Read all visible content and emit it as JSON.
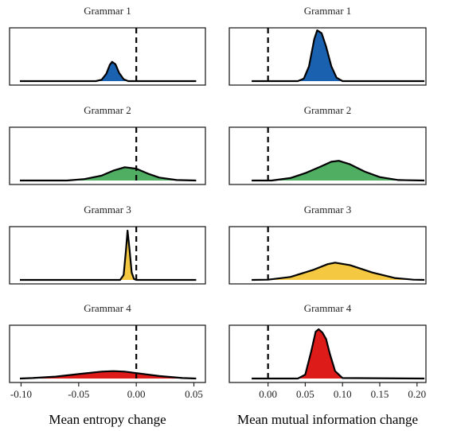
{
  "chart_data": [
    {
      "type": "density",
      "xlabel": "Mean entropy change",
      "xlim": [
        -0.11,
        0.06
      ],
      "ylim": [
        -0.08,
        1.08
      ],
      "xticks": [
        {
          "value": -0.1,
          "label": "-0.10"
        },
        {
          "value": -0.05,
          "label": "-0.05"
        },
        {
          "value": 0,
          "label": "0.00"
        },
        {
          "value": 0.05,
          "label": "0.05"
        }
      ],
      "reference_line": 0,
      "panels": [
        {
          "title": "Grammar 1",
          "color": "#1a62b0",
          "x": [
            -0.101,
            -0.035,
            -0.03,
            -0.026,
            -0.023,
            -0.021,
            -0.018,
            -0.015,
            -0.011,
            -0.007,
            0.052
          ],
          "values": [
            0,
            0,
            0.03,
            0.15,
            0.33,
            0.39,
            0.34,
            0.17,
            0.04,
            0,
            0
          ]
        },
        {
          "title": "Grammar 2",
          "color": "#4fae62",
          "x": [
            -0.101,
            -0.06,
            -0.045,
            -0.03,
            -0.02,
            -0.01,
            0.0,
            0.01,
            0.02,
            0.035,
            0.052
          ],
          "values": [
            0,
            0,
            0.03,
            0.1,
            0.2,
            0.27,
            0.24,
            0.14,
            0.06,
            0.01,
            0
          ]
        },
        {
          "title": "Grammar 3",
          "color": "#f5c842",
          "x": [
            -0.101,
            -0.014,
            -0.011,
            -0.009,
            -0.0076,
            -0.006,
            -0.004,
            -0.002,
            0,
            0.052
          ],
          "values": [
            0,
            0,
            0.1,
            0.6,
            1.0,
            0.65,
            0.15,
            0.02,
            0,
            0
          ]
        },
        {
          "title": "Grammar 4",
          "color": "#dd1c1a",
          "x": [
            -0.101,
            -0.09,
            -0.07,
            -0.05,
            -0.03,
            -0.02,
            -0.01,
            0.0,
            0.02,
            0.04,
            0.052
          ],
          "values": [
            0,
            0.01,
            0.04,
            0.09,
            0.14,
            0.15,
            0.14,
            0.11,
            0.05,
            0.01,
            0
          ]
        }
      ]
    },
    {
      "type": "density",
      "xlabel": "Mean mutual information change",
      "xlim": [
        -0.052,
        0.212
      ],
      "ylim": [
        -0.08,
        1.08
      ],
      "xticks": [
        {
          "value": 0,
          "label": "0.00"
        },
        {
          "value": 0.05,
          "label": "0.05"
        },
        {
          "value": 0.1,
          "label": "0.10"
        },
        {
          "value": 0.15,
          "label": "0.15"
        },
        {
          "value": 0.2,
          "label": "0.20"
        }
      ],
      "reference_line": 0,
      "panels": [
        {
          "title": "Grammar 1",
          "color": "#1a62b0",
          "x": [
            -0.022,
            0.04,
            0.048,
            0.055,
            0.062,
            0.066,
            0.072,
            0.078,
            0.085,
            0.092,
            0.1,
            0.21
          ],
          "values": [
            0,
            0,
            0.05,
            0.3,
            0.85,
            1.03,
            0.97,
            0.7,
            0.3,
            0.07,
            0,
            0
          ]
        },
        {
          "title": "Grammar 2",
          "color": "#4fae62",
          "x": [
            -0.022,
            0.005,
            0.03,
            0.05,
            0.07,
            0.085,
            0.095,
            0.11,
            0.13,
            0.15,
            0.175,
            0.21
          ],
          "values": [
            0,
            0,
            0.05,
            0.15,
            0.28,
            0.38,
            0.4,
            0.33,
            0.18,
            0.07,
            0.01,
            0
          ]
        },
        {
          "title": "Grammar 3",
          "color": "#f5c842",
          "x": [
            -0.022,
            0.0,
            0.03,
            0.06,
            0.08,
            0.09,
            0.11,
            0.14,
            0.17,
            0.195,
            0.21
          ],
          "values": [
            0,
            0.005,
            0.06,
            0.2,
            0.32,
            0.35,
            0.3,
            0.15,
            0.04,
            0.005,
            0
          ]
        },
        {
          "title": "Grammar 4",
          "color": "#dd1c1a",
          "x": [
            -0.022,
            0.04,
            0.05,
            0.058,
            0.064,
            0.068,
            0.073,
            0.078,
            0.083,
            0.09,
            0.1,
            0.21
          ],
          "values": [
            0,
            0,
            0.08,
            0.55,
            0.95,
            1.0,
            0.93,
            0.8,
            0.5,
            0.15,
            0.01,
            0
          ]
        }
      ]
    }
  ]
}
